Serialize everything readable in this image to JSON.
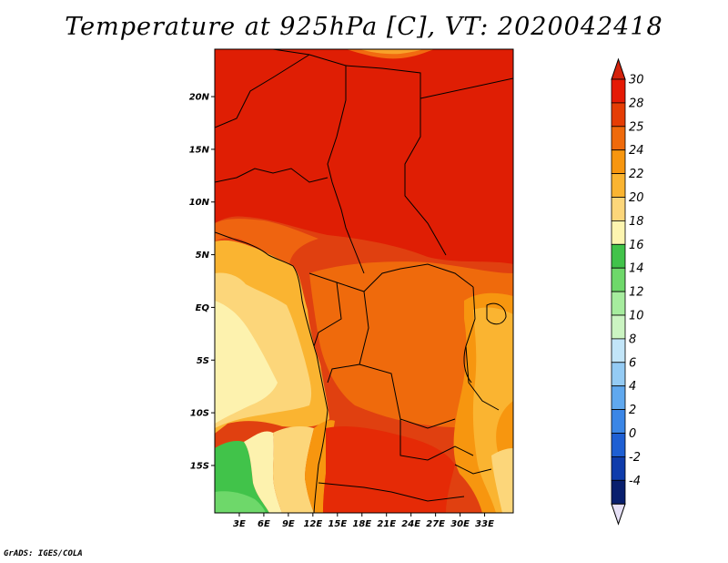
{
  "title": "Temperature at 925hPa [C], VT: 2020042418",
  "credit": "GrADS: IGES/COLA",
  "map": {
    "lat_range": [
      -19.5,
      24.5
    ],
    "lon_range": [
      0,
      36.5
    ],
    "lat_ticks": [
      {
        "value": 20,
        "label": "20N"
      },
      {
        "value": 15,
        "label": "15N"
      },
      {
        "value": 10,
        "label": "10N"
      },
      {
        "value": 5,
        "label": "5N"
      },
      {
        "value": 0,
        "label": "EQ"
      },
      {
        "value": -5,
        "label": "5S"
      },
      {
        "value": -10,
        "label": "10S"
      },
      {
        "value": -15,
        "label": "15S"
      }
    ],
    "lon_ticks": [
      {
        "value": 3,
        "label": "3E"
      },
      {
        "value": 6,
        "label": "6E"
      },
      {
        "value": 9,
        "label": "9E"
      },
      {
        "value": 12,
        "label": "12E"
      },
      {
        "value": 15,
        "label": "15E"
      },
      {
        "value": 18,
        "label": "18E"
      },
      {
        "value": 21,
        "label": "21E"
      },
      {
        "value": 24,
        "label": "24E"
      },
      {
        "value": 27,
        "label": "27E"
      },
      {
        "value": 30,
        "label": "30E"
      },
      {
        "value": 33,
        "label": "33E"
      }
    ]
  },
  "colorbar": {
    "labels": [
      "30",
      "28",
      "25",
      "24",
      "22",
      "20",
      "18",
      "16",
      "14",
      "12",
      "10",
      "8",
      "6",
      "4",
      "2",
      "0",
      "-2",
      "-4"
    ],
    "colors": [
      "#e51a05",
      "#e53d05",
      "#ef6a0c",
      "#f7960f",
      "#fab431",
      "#fcd67a",
      "#fdf5b0",
      "#41c34a",
      "#6ed86a",
      "#a6ec9e",
      "#cbf4c2",
      "#c2e5f8",
      "#94cbf4",
      "#60a8ee",
      "#3b86e6",
      "#1e5fd3",
      "#0f3cab",
      "#091f6e"
    ],
    "top_color": "#d4220c",
    "bottom_color": "#e6e0f6"
  }
}
